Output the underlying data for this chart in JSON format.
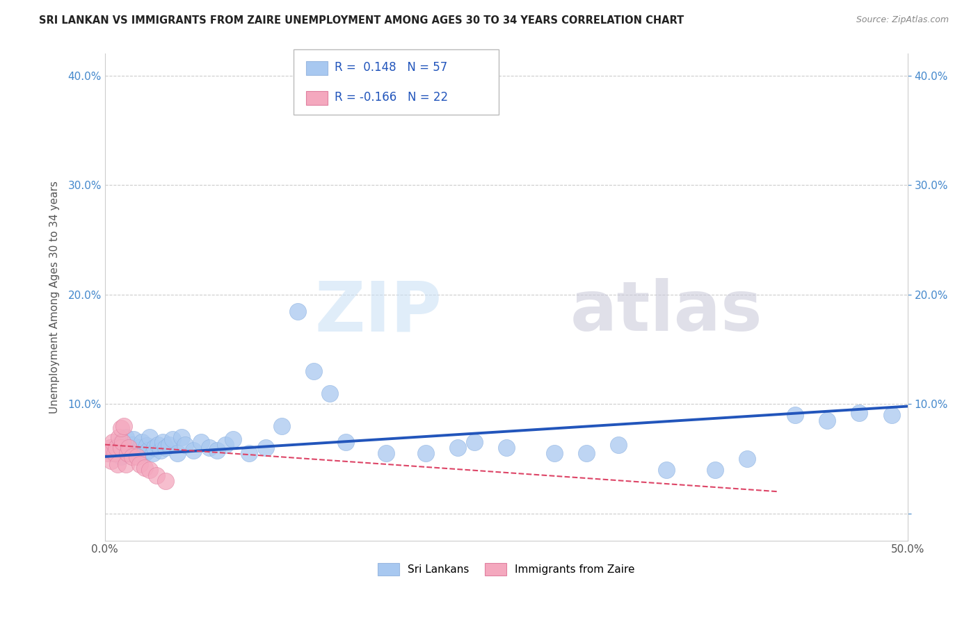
{
  "title": "SRI LANKAN VS IMMIGRANTS FROM ZAIRE UNEMPLOYMENT AMONG AGES 30 TO 34 YEARS CORRELATION CHART",
  "source": "Source: ZipAtlas.com",
  "ylabel": "Unemployment Among Ages 30 to 34 years",
  "xlim": [
    0.0,
    0.5
  ],
  "ylim": [
    -0.025,
    0.42
  ],
  "yticks": [
    0.0,
    0.1,
    0.2,
    0.3,
    0.4
  ],
  "ytick_labels": [
    "",
    "10.0%",
    "20.0%",
    "30.0%",
    "40.0%"
  ],
  "xticks": [
    0.0,
    0.1,
    0.2,
    0.3,
    0.4,
    0.5
  ],
  "xtick_labels": [
    "0.0%",
    "",
    "",
    "",
    "",
    "50.0%"
  ],
  "blue_r": 0.148,
  "blue_n": 57,
  "pink_r": -0.166,
  "pink_n": 22,
  "blue_color": "#a8c8f0",
  "pink_color": "#f4a8be",
  "blue_line_color": "#2255bb",
  "pink_line_color": "#dd4466",
  "watermark_zip": "ZIP",
  "watermark_atlas": "atlas",
  "legend_label_blue": "Sri Lankans",
  "legend_label_pink": "Immigrants from Zaire",
  "blue_scatter_x": [
    0.005,
    0.008,
    0.01,
    0.01,
    0.012,
    0.013,
    0.015,
    0.016,
    0.017,
    0.018,
    0.02,
    0.021,
    0.022,
    0.023,
    0.025,
    0.026,
    0.027,
    0.028,
    0.03,
    0.031,
    0.033,
    0.035,
    0.036,
    0.038,
    0.04,
    0.042,
    0.045,
    0.048,
    0.05,
    0.055,
    0.06,
    0.065,
    0.07,
    0.075,
    0.08,
    0.09,
    0.1,
    0.11,
    0.12,
    0.13,
    0.14,
    0.15,
    0.175,
    0.2,
    0.22,
    0.23,
    0.25,
    0.28,
    0.3,
    0.32,
    0.35,
    0.38,
    0.4,
    0.43,
    0.45,
    0.47,
    0.49
  ],
  "blue_scatter_y": [
    0.055,
    0.06,
    0.052,
    0.065,
    0.058,
    0.07,
    0.055,
    0.06,
    0.063,
    0.068,
    0.055,
    0.058,
    0.06,
    0.065,
    0.055,
    0.062,
    0.058,
    0.07,
    0.055,
    0.06,
    0.063,
    0.058,
    0.065,
    0.06,
    0.063,
    0.068,
    0.055,
    0.07,
    0.063,
    0.058,
    0.065,
    0.06,
    0.058,
    0.063,
    0.068,
    0.055,
    0.06,
    0.08,
    0.185,
    0.13,
    0.11,
    0.065,
    0.055,
    0.055,
    0.06,
    0.065,
    0.06,
    0.055,
    0.055,
    0.063,
    0.04,
    0.04,
    0.05,
    0.09,
    0.085,
    0.092,
    0.09
  ],
  "pink_scatter_x": [
    0.002,
    0.003,
    0.004,
    0.005,
    0.006,
    0.007,
    0.008,
    0.009,
    0.01,
    0.011,
    0.013,
    0.014,
    0.015,
    0.017,
    0.02,
    0.022,
    0.025,
    0.028,
    0.032,
    0.038,
    0.01,
    0.012
  ],
  "pink_scatter_y": [
    0.055,
    0.06,
    0.048,
    0.065,
    0.055,
    0.06,
    0.045,
    0.07,
    0.06,
    0.065,
    0.045,
    0.055,
    0.06,
    0.052,
    0.052,
    0.045,
    0.042,
    0.04,
    0.035,
    0.03,
    0.078,
    0.08
  ],
  "blue_line_x0": 0.0,
  "blue_line_x1": 0.5,
  "blue_line_y0": 0.052,
  "blue_line_y1": 0.098,
  "pink_line_x0": 0.0,
  "pink_line_x1": 0.42,
  "pink_line_y0": 0.063,
  "pink_line_y1": 0.02
}
